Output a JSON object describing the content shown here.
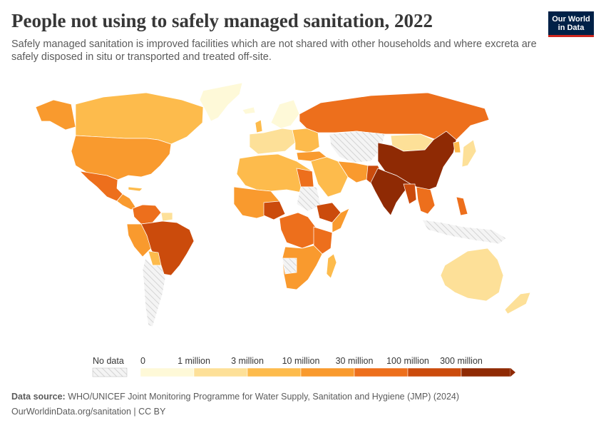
{
  "title": "People not using to safely managed sanitation, 2022",
  "subtitle": "Safely managed sanitation is improved facilities which are not shared with other households and where excreta are safely disposed in situ or transported and treated off-site.",
  "logo": {
    "line1": "Our World",
    "line2": "in Data"
  },
  "legend": {
    "no_data": "No data",
    "ticks": [
      "0",
      "1 million",
      "3 million",
      "10 million",
      "30 million",
      "100 million",
      "300 million"
    ],
    "bins": [
      {
        "color": "#fef9d8"
      },
      {
        "color": "#fde098"
      },
      {
        "color": "#fdbb4c"
      },
      {
        "color": "#f99a2e"
      },
      {
        "color": "#ed6f1c"
      },
      {
        "color": "#cb4b0c"
      },
      {
        "color": "#8f2a04"
      }
    ]
  },
  "footer": {
    "source_label": "Data source:",
    "source_text": "WHO/UNICEF Joint Monitoring Programme for Water Supply, Sanitation and Hygiene (JMP) (2024)",
    "url_license": "OurWorldinData.org/sanitation | CC BY"
  }
}
